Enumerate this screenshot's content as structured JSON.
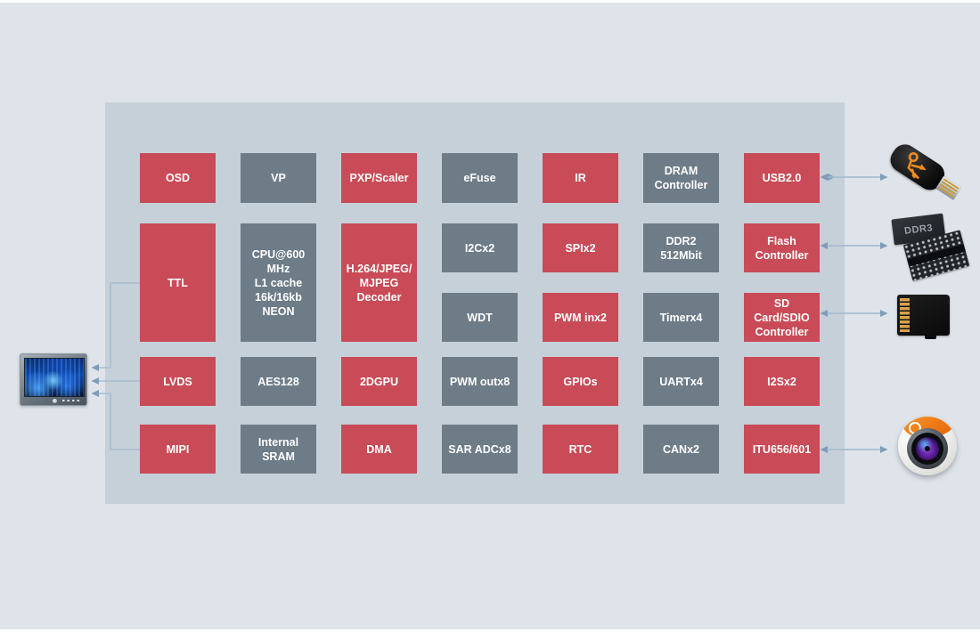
{
  "diagram": {
    "colors": {
      "page_bg": "#dfe4ea",
      "container_bg": "#c6d0d8",
      "block_red": "#c94b57",
      "block_gray": "#6e7c88",
      "block_text": "#ffffff",
      "arrow_line": "#a7bdd0",
      "arrow_head": "#7f9cb8"
    },
    "blocks": [
      {
        "id": "osd",
        "label": "OSD",
        "color": "red",
        "col": 1,
        "row": "r1"
      },
      {
        "id": "vp",
        "label": "VP",
        "color": "gray",
        "col": 2,
        "row": "r1"
      },
      {
        "id": "pxp-scaler",
        "label": "PXP/Scaler",
        "color": "red",
        "col": 3,
        "row": "r1"
      },
      {
        "id": "efuse",
        "label": "eFuse",
        "color": "gray",
        "col": 4,
        "row": "r1"
      },
      {
        "id": "ir",
        "label": "IR",
        "color": "red",
        "col": 5,
        "row": "r1"
      },
      {
        "id": "dram-controller",
        "label": "DRAM\nController",
        "color": "gray",
        "col": 6,
        "row": "r1"
      },
      {
        "id": "usb2",
        "label": "USB2.0",
        "color": "red",
        "col": 7,
        "row": "r1"
      },
      {
        "id": "ttl",
        "label": "TTL",
        "color": "red",
        "col": 1,
        "row": "tall"
      },
      {
        "id": "cpu",
        "label": "CPU@600\nMHz\nL1 cache\n16k/16kb\nNEON",
        "color": "gray",
        "col": 2,
        "row": "tall"
      },
      {
        "id": "h264-decoder",
        "label": "H.264/JPEG/\nMJPEG\nDecoder",
        "color": "red",
        "col": 3,
        "row": "tall"
      },
      {
        "id": "i2c",
        "label": "I2Cx2",
        "color": "gray",
        "col": 4,
        "row": "r2"
      },
      {
        "id": "spi",
        "label": "SPIx2",
        "color": "red",
        "col": 5,
        "row": "r2"
      },
      {
        "id": "ddr2",
        "label": "DDR2\n512Mbit",
        "color": "gray",
        "col": 6,
        "row": "r2"
      },
      {
        "id": "flash-controller",
        "label": "Flash\nController",
        "color": "red",
        "col": 7,
        "row": "r2"
      },
      {
        "id": "wdt",
        "label": "WDT",
        "color": "gray",
        "col": 4,
        "row": "r3"
      },
      {
        "id": "pwm-in",
        "label": "PWM inx2",
        "color": "red",
        "col": 5,
        "row": "r3"
      },
      {
        "id": "timer",
        "label": "Timerx4",
        "color": "gray",
        "col": 6,
        "row": "r3"
      },
      {
        "id": "sd-sdio-controller",
        "label": "SD\nCard/SDIO\nController",
        "color": "red",
        "col": 7,
        "row": "r3"
      },
      {
        "id": "lvds",
        "label": "LVDS",
        "color": "red",
        "col": 1,
        "row": "r4"
      },
      {
        "id": "aes128",
        "label": "AES128",
        "color": "gray",
        "col": 2,
        "row": "r4"
      },
      {
        "id": "2dgpu",
        "label": "2DGPU",
        "color": "red",
        "col": 3,
        "row": "r4"
      },
      {
        "id": "pwm-out",
        "label": "PWM outx8",
        "color": "gray",
        "col": 4,
        "row": "r4"
      },
      {
        "id": "gpios",
        "label": "GPIOs",
        "color": "red",
        "col": 5,
        "row": "r4"
      },
      {
        "id": "uart",
        "label": "UARTx4",
        "color": "gray",
        "col": 6,
        "row": "r4"
      },
      {
        "id": "i2s",
        "label": "I2Sx2",
        "color": "red",
        "col": 7,
        "row": "r4"
      },
      {
        "id": "mipi",
        "label": "MIPI",
        "color": "red",
        "col": 1,
        "row": "r5"
      },
      {
        "id": "internal-sram",
        "label": "Internal\nSRAM",
        "color": "gray",
        "col": 2,
        "row": "r5"
      },
      {
        "id": "dma",
        "label": "DMA",
        "color": "red",
        "col": 3,
        "row": "r5"
      },
      {
        "id": "sar-adc",
        "label": "SAR ADCx8",
        "color": "gray",
        "col": 4,
        "row": "r5"
      },
      {
        "id": "rtc",
        "label": "RTC",
        "color": "red",
        "col": 5,
        "row": "r5"
      },
      {
        "id": "can",
        "label": "CANx2",
        "color": "gray",
        "col": 6,
        "row": "r5"
      },
      {
        "id": "itu656",
        "label": "ITU656/601",
        "color": "red",
        "col": 7,
        "row": "r5"
      }
    ],
    "peripherals": {
      "monitor": {
        "icon": "display-monitor-icon"
      },
      "usb_drive": {
        "icon": "usb-flash-drive-icon"
      },
      "ddr3": {
        "icon": "memory-chips-icon",
        "label": "DDR3"
      },
      "sd_card": {
        "icon": "microsd-card-icon"
      },
      "camera": {
        "icon": "camera-icon"
      }
    },
    "connections": [
      {
        "from": "TTL",
        "to": "monitor",
        "direction": "to"
      },
      {
        "from": "LVDS",
        "to": "monitor",
        "direction": "to"
      },
      {
        "from": "MIPI",
        "to": "monitor",
        "direction": "to"
      },
      {
        "from": "USB2.0",
        "to": "usb_drive",
        "direction": "both"
      },
      {
        "from": "Flash Controller",
        "to": "ddr3",
        "direction": "both"
      },
      {
        "from": "SD Card/SDIO Controller",
        "to": "sd_card",
        "direction": "both"
      },
      {
        "from": "ITU656/601",
        "to": "camera",
        "direction": "both"
      }
    ]
  }
}
